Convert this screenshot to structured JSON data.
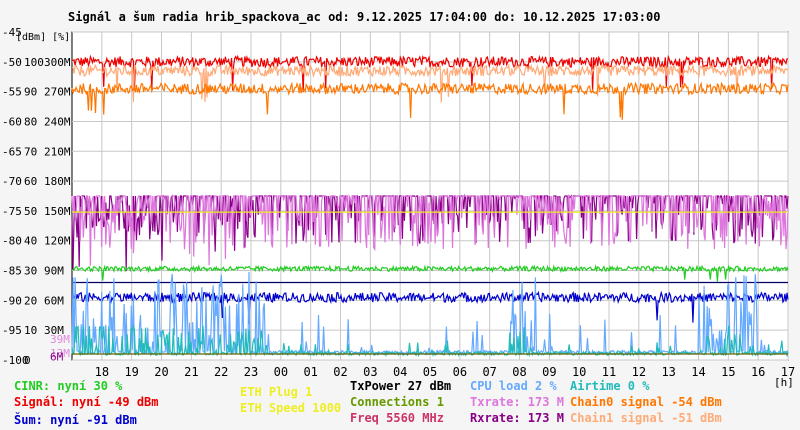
{
  "chart_data": {
    "type": "line",
    "title": "Signál a šum radia hrib_spackova_ac od: 9.12.2025 17:04:00 do: 10.12.2025 17:03:00",
    "axis_units": [
      "[dBm]",
      "[%]"
    ],
    "x_unit": "[h]",
    "x_ticks": [
      "18",
      "19",
      "20",
      "21",
      "22",
      "23",
      "00",
      "01",
      "02",
      "03",
      "04",
      "05",
      "06",
      "07",
      "08",
      "09",
      "10",
      "11",
      "12",
      "13",
      "14",
      "15",
      "16",
      "17"
    ],
    "y_rows": [
      {
        "dbm": "-45",
        "pct": "",
        "rate": ""
      },
      {
        "dbm": "-50",
        "pct": "100",
        "rate": "300M"
      },
      {
        "dbm": "-55",
        "pct": "90",
        "rate": "270M"
      },
      {
        "dbm": "-60",
        "pct": "80",
        "rate": "240M"
      },
      {
        "dbm": "-65",
        "pct": "70",
        "rate": "210M"
      },
      {
        "dbm": "-70",
        "pct": "60",
        "rate": "180M"
      },
      {
        "dbm": "-75",
        "pct": "50",
        "rate": "150M"
      },
      {
        "dbm": "-80",
        "pct": "40",
        "rate": "120M"
      },
      {
        "dbm": "-85",
        "pct": "30",
        "rate": "90M"
      },
      {
        "dbm": "-90",
        "pct": "20",
        "rate": "60M"
      },
      {
        "dbm": "-95",
        "pct": "10",
        "rate": "30M"
      },
      {
        "dbm": "-100",
        "pct": "0",
        "rate": ""
      }
    ],
    "extra_rate_labels": [
      {
        "text": "39M",
        "dbm": -96.5,
        "color": "#dd88dd"
      },
      {
        "text": "13M",
        "dbm": -98.8,
        "color": "#dd88dd"
      },
      {
        "text": "6M",
        "dbm": -99.4,
        "color": "#880088"
      }
    ],
    "ylim": [
      -100,
      -45
    ],
    "xlim": [
      17.0,
      41.0
    ],
    "series": [
      {
        "name": "Signál",
        "color": "#ee0000",
        "kind": "noisy",
        "base": -50.0,
        "amp": 0.9
      },
      {
        "name": "Chain1 signal",
        "color": "#ffaa77",
        "kind": "noisy",
        "base": -51.5,
        "amp": 0.9
      },
      {
        "name": "Chain0 signal",
        "color": "#ff7700",
        "kind": "noisy",
        "base": -54.5,
        "amp": 0.9
      },
      {
        "name": "Rxrate",
        "color": "#880088",
        "kind": "upper",
        "base": -72.5,
        "amp": 4.0
      },
      {
        "name": "Txrate",
        "color": "#dd77dd",
        "kind": "upper",
        "base": -72.5,
        "amp": 4.5
      },
      {
        "name": "ETH Speed",
        "color": "#eeee22",
        "kind": "flat",
        "base": -75.2,
        "amp": 0
      },
      {
        "name": "CINR",
        "color": "#22cc22",
        "kind": "noisy",
        "base": -84.7,
        "amp": 0.4
      },
      {
        "name": "TxPower",
        "color": "#000066",
        "kind": "flat",
        "base": -87.0,
        "amp": 0
      },
      {
        "name": "Šum",
        "color": "#0000cc",
        "kind": "noisy",
        "base": -89.5,
        "amp": 0.8
      },
      {
        "name": "CPU load",
        "color": "#66aaff",
        "kind": "spiky",
        "base": -99.0,
        "amp": 14.0
      },
      {
        "name": "Airtime",
        "color": "#22bbbb",
        "kind": "spiky",
        "base": -99.2,
        "amp": 5.0
      },
      {
        "name": "Connections",
        "color": "#666600",
        "kind": "flat",
        "base": -99.0,
        "amp": 0
      }
    ],
    "legend": [
      {
        "label": "CINR: nyní 30 %",
        "color": "#22cc22"
      },
      {
        "label": "Signál: nyní -49 dBm",
        "color": "#ee0000"
      },
      {
        "label": "Šum: nyní -91 dBm",
        "color": "#0000cc"
      },
      {
        "label": "ETH Plug 1",
        "color": "#eeee22"
      },
      {
        "label": "ETH Speed 1000",
        "color": "#eeee22"
      },
      {
        "label": "TxPower 27 dBm",
        "color": "#000000"
      },
      {
        "label": "Connections 1",
        "color": "#669900"
      },
      {
        "label": "Freq 5560 MHz",
        "color": "#cc3366"
      },
      {
        "label": "CPU load 2 %",
        "color": "#66aaff"
      },
      {
        "label": "Txrate: 173 M",
        "color": "#dd77dd"
      },
      {
        "label": "Rxrate: 173 M",
        "color": "#880088"
      },
      {
        "label": "Airtime 0 %",
        "color": "#22bbbb"
      },
      {
        "label": "Chain0 signal -54 dBm",
        "color": "#ff7700"
      },
      {
        "label": "Chain1 signal -51 dBm",
        "color": "#ffaa77"
      }
    ],
    "grid": true
  }
}
